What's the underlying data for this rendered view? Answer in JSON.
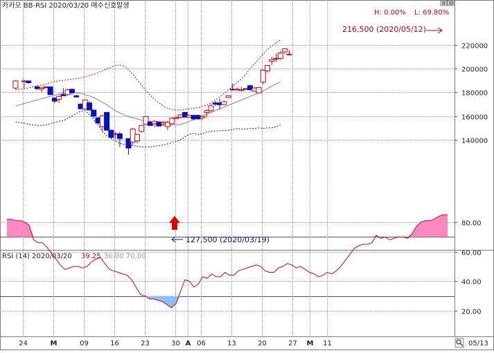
{
  "header": {
    "title": "카카오 BB-RSI 2020/03/20 매수신호발생",
    "high_label": "H: 0.00%",
    "low_label": "L: 69.80%",
    "annot_high": "216,500 (2020/05/12)",
    "annot_low": "127,500 (2020/03/19)",
    "rsi_title": "RSI (14) 2020/03/20",
    "rsi_value": "39.25",
    "rsi_levels": "30.00 70.00",
    "date_label": "05/13"
  },
  "colors": {
    "up": "#e00000",
    "down": "#0010c8",
    "upper_band": "#e00000",
    "lower_band": "#0010c8",
    "mid_band": "#808080",
    "rsi_line": "#e00000",
    "overbought_fill": "#ff88c0",
    "oversold_fill": "#88c0ff",
    "buy_arrow": "#e00000"
  },
  "chart_data": [
    {
      "type": "candlestick",
      "ylim": [
        122000,
        226000
      ],
      "yticks": [
        140000,
        160000,
        180000,
        200000,
        220000
      ],
      "ytick_labels": [
        "140000",
        "160000",
        "180000",
        "200000",
        "220000"
      ],
      "xtick_labels": [
        "24",
        "M",
        "09",
        "16",
        "23",
        "30",
        "A",
        "06",
        "13",
        "20",
        "27",
        "M",
        "11"
      ],
      "xtick_index": [
        4,
        11,
        18,
        25,
        32,
        39,
        42,
        45,
        52,
        59,
        66,
        70,
        74
      ],
      "candles": [
        [
          183500,
          190000,
          182500,
          189500
        ],
        [
          189000,
          190500,
          183000,
          189500
        ],
        [
          189500,
          189500,
          187000,
          188000
        ],
        [
          184500,
          185500,
          182000,
          183000
        ],
        [
          182500,
          184500,
          180000,
          183500
        ],
        [
          184000,
          185000,
          183000,
          184500
        ],
        [
          184500,
          184500,
          178000,
          178000
        ],
        [
          175000,
          176000,
          171000,
          172500
        ],
        [
          174000,
          177500,
          171000,
          176500
        ],
        [
          178000,
          183500,
          177000,
          177000
        ],
        [
          178000,
          183000,
          177000,
          182000
        ],
        [
          182500,
          183000,
          178000,
          179500
        ],
        [
          177000,
          178000,
          175500,
          176000
        ],
        [
          170000,
          170500,
          166000,
          166000
        ],
        [
          166000,
          174000,
          165000,
          173500
        ],
        [
          171000,
          172500,
          165000,
          165000
        ],
        [
          165000,
          165000,
          158500,
          160000
        ],
        [
          158500,
          159000,
          153500,
          154000
        ],
        [
          151000,
          161000,
          147000,
          160000
        ],
        [
          163000,
          163000,
          148000,
          148000
        ],
        [
          148000,
          148500,
          141000,
          142000
        ],
        [
          145000,
          146500,
          140500,
          145000
        ],
        [
          145000,
          146500,
          134000,
          141000
        ],
        [
          141000,
          141000,
          127500,
          133000
        ],
        [
          138000,
          150000,
          135500,
          149000
        ],
        [
          139000,
          145000,
          137000,
          144500
        ],
        [
          147000,
          152000,
          146000,
          152000
        ],
        [
          153000,
          160000,
          153000,
          159500
        ],
        [
          155000,
          156000,
          152000,
          152000
        ],
        [
          153500,
          156500,
          150500,
          155500
        ],
        [
          155000,
          155000,
          151500,
          151500
        ],
        [
          154000,
          155500,
          151500,
          155000
        ],
        [
          151000,
          156000,
          148000,
          154500
        ],
        [
          153500,
          159000,
          153000,
          158000
        ],
        [
          158500,
          159500,
          158000,
          158500
        ],
        [
          159000,
          161500,
          158000,
          161000
        ],
        [
          163000,
          163500,
          159000,
          159000
        ],
        [
          159000,
          161000,
          158500,
          160500
        ],
        [
          160500,
          161000,
          156500,
          157500
        ],
        [
          160500,
          161000,
          157000,
          157500
        ],
        [
          158500,
          160000,
          156500,
          159500
        ],
        [
          163000,
          165500,
          158500,
          164500
        ],
        [
          164500,
          170000,
          163000,
          168500
        ],
        [
          171000,
          172500,
          168500,
          170000
        ],
        [
          171000,
          174500,
          165500,
          169500
        ],
        [
          169500,
          173000,
          169000,
          172000
        ],
        [
          175500,
          177500,
          175000,
          177000
        ],
        [
          182500,
          187500,
          181500,
          182000
        ],
        [
          182000,
          184000,
          181500,
          182500
        ],
        [
          181500,
          184500,
          181000,
          182000
        ],
        [
          183000,
          183000,
          182500,
          182500
        ],
        [
          185500,
          186000,
          181500,
          182000
        ],
        [
          181000,
          184500,
          180500,
          183500
        ],
        [
          179500,
          184500,
          179000,
          184000
        ],
        [
          188500,
          199000,
          186500,
          198500
        ],
        [
          198000,
          203000,
          196500,
          202500
        ],
        [
          206000,
          210000,
          203000,
          207500
        ],
        [
          208000,
          212500,
          205500,
          208500
        ],
        [
          208500,
          215000,
          207000,
          213000
        ],
        [
          214000,
          217000,
          212000,
          216500
        ],
        [
          212000,
          215500,
          211000,
          212000
        ]
      ],
      "candle_index": [
        0,
        2,
        3,
        5,
        6,
        7,
        8,
        9,
        10,
        11,
        12,
        13,
        14,
        15,
        16,
        17,
        18,
        19,
        20,
        21,
        22,
        23,
        24,
        26,
        27,
        28,
        29,
        30,
        31,
        32,
        33,
        34,
        35,
        36,
        37,
        38,
        39,
        40,
        41,
        42,
        43,
        44,
        45,
        46,
        47,
        48,
        49,
        50,
        51,
        52,
        53,
        54,
        55,
        56,
        57,
        58,
        59,
        60,
        61,
        62,
        63
      ],
      "series": [
        {
          "name": "upper",
          "values": [
            182000,
            182500,
            183000,
            183500,
            184500,
            185500,
            186000,
            187000,
            188000,
            189000,
            189500,
            190000,
            190500,
            191000,
            191500,
            192000,
            193000,
            194000,
            195000,
            196500,
            198000,
            199500,
            201000,
            202500,
            203000,
            202000,
            199000,
            195000,
            190500,
            186000,
            181500,
            177500,
            174000,
            171000,
            168500,
            166500,
            165500,
            165000,
            165000,
            165500,
            166000,
            166500,
            167000,
            168000,
            169000,
            171000,
            173500,
            176000,
            179000,
            182000,
            185000,
            188000,
            191000,
            195000,
            200000,
            204000,
            208000,
            212000,
            216000,
            219000,
            221500,
            224000
          ]
        },
        {
          "name": "middle",
          "values": [
            168500,
            169500,
            170500,
            171500,
            172500,
            173500,
            174500,
            175500,
            176500,
            177500,
            178500,
            179000,
            179500,
            180000,
            179500,
            179000,
            178000,
            177000,
            175500,
            173500,
            171500,
            169500,
            167000,
            164500,
            162500,
            161000,
            159500,
            158500,
            157500,
            156500,
            155500,
            154500,
            153500,
            153000,
            152500,
            152500,
            152500,
            152500,
            153000,
            154000,
            155500,
            157000,
            158500,
            160000,
            161500,
            163000,
            164500,
            166000,
            167500,
            169000,
            170500,
            172000,
            173500,
            175000,
            176500,
            178000,
            179500,
            181000,
            183000,
            185000,
            187000,
            188500
          ]
        },
        {
          "name": "lower",
          "values": [
            155000,
            154500,
            154000,
            153000,
            152500,
            152000,
            152000,
            152500,
            153500,
            154500,
            155500,
            156000,
            158000,
            160000,
            162000,
            164000,
            164500,
            161000,
            157000,
            152500,
            147000,
            143500,
            141000,
            139000,
            137000,
            136000,
            135500,
            135000,
            134500,
            134000,
            134000,
            134000,
            134500,
            135000,
            135500,
            136500,
            137500,
            138500,
            140000,
            142500,
            144500,
            145500,
            144500,
            145000,
            146500,
            147000,
            147500,
            147500,
            148000,
            148000,
            148500,
            149500,
            149000,
            149000,
            149500,
            149500,
            150000,
            149500,
            150000,
            150000,
            151000,
            152500
          ]
        }
      ]
    },
    {
      "type": "line",
      "title": "RSI (14)",
      "ylim": [
        18,
        88
      ],
      "yticks": [
        20,
        40,
        60,
        80
      ],
      "ytick_labels": [
        "20.00",
        "40.00",
        "60.00",
        "80.00"
      ],
      "levels": [
        30,
        70
      ],
      "values": [
        82,
        82,
        81,
        81,
        80,
        78,
        68,
        66,
        66,
        63,
        59,
        55,
        51,
        48,
        49,
        50,
        50,
        49,
        50,
        53,
        55,
        56,
        52,
        48,
        47,
        46,
        45,
        44,
        41,
        36,
        31,
        30,
        28,
        28,
        27,
        26,
        24,
        22,
        25,
        33,
        41,
        40,
        36,
        38,
        43,
        42,
        45,
        43,
        43,
        46,
        44,
        44,
        47,
        48,
        49,
        50,
        51,
        50,
        47,
        46,
        46,
        49,
        50,
        52,
        51,
        49,
        50,
        48,
        46,
        45,
        43,
        44,
        46,
        45,
        47,
        50,
        54,
        58,
        62,
        64,
        65,
        65,
        66,
        71,
        69,
        70,
        68,
        69,
        70,
        70,
        69,
        72,
        77,
        80,
        81,
        81,
        82,
        84,
        85,
        85
      ]
    }
  ]
}
